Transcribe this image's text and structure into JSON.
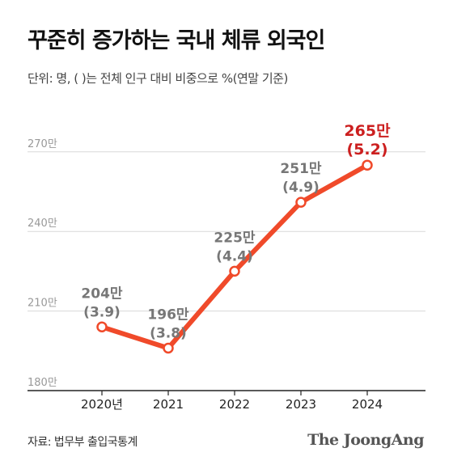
{
  "header": {
    "title": "꾸준히 증가하는 국내 체류 외국인",
    "subtitle": "단위: 명, ( )는 전체 인구 대비 비중으로 %(연말 기준)"
  },
  "footer": {
    "source": "자료: 법무부 출입국통계",
    "logo": "The JoongAng"
  },
  "colors": {
    "line": "#f04a2a",
    "highlight_label": "#cc1f1f",
    "label": "#777777",
    "grid": "#d8d8d8",
    "axis": "#222222"
  },
  "chart_data": {
    "type": "line",
    "title": "꾸준히 증가하는 국내 체류 외국인",
    "categories": [
      "2020년",
      "2021",
      "2022",
      "2023",
      "2024"
    ],
    "series": [
      {
        "values": [
          204,
          196,
          225,
          251,
          265
        ],
        "value_labels": [
          "204만",
          "196만",
          "225만",
          "251만",
          "265만"
        ],
        "share_labels": [
          "(3.9)",
          "(3.8)",
          "(4.4)",
          "(4.9)",
          "(5.2)"
        ],
        "share_percent": [
          3.9,
          3.8,
          4.4,
          4.9,
          5.2
        ]
      }
    ],
    "y_ticks": [
      180,
      210,
      240,
      270
    ],
    "y_tick_labels": [
      "180만",
      "210만",
      "240만",
      "270만"
    ],
    "ylim": [
      180,
      280
    ],
    "grid": true,
    "highlight_last": true
  }
}
